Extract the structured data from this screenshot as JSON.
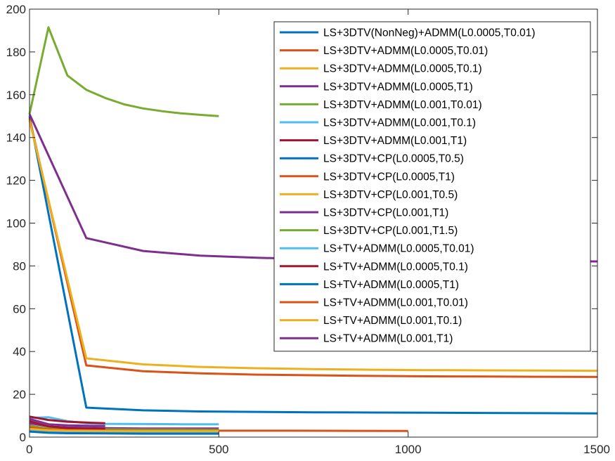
{
  "chart_data": {
    "type": "line",
    "title": "",
    "xlabel": "",
    "ylabel": "",
    "xlim": [
      0,
      1500
    ],
    "ylim": [
      0,
      200
    ],
    "xticks": [
      0,
      500,
      1000,
      1500
    ],
    "yticks": [
      0,
      20,
      40,
      60,
      80,
      100,
      120,
      140,
      160,
      180,
      200
    ],
    "grid": false,
    "legend_position": "top-right",
    "series": [
      {
        "name": "LS+3DTV(NonNeg)+ADMM(L0.0005,T0.01)",
        "color": "#0072BD",
        "x": [
          0,
          150,
          300,
          450,
          600,
          750,
          900,
          1050,
          1200,
          1350,
          1500
        ],
        "y": [
          150,
          13.8,
          12.5,
          12,
          11.8,
          11.6,
          11.5,
          11.4,
          11.3,
          11.2,
          11.1
        ]
      },
      {
        "name": "LS+3DTV+ADMM(L0.0005,T0.01)",
        "color": "#D95319",
        "x": [
          0,
          150,
          300,
          450,
          600,
          750,
          900,
          1050,
          1200,
          1350,
          1500
        ],
        "y": [
          149,
          33.5,
          30.8,
          29.8,
          29.2,
          28.9,
          28.6,
          28.4,
          28.3,
          28.2,
          28.1
        ]
      },
      {
        "name": "LS+3DTV+ADMM(L0.0005,T0.1)",
        "color": "#EDB120",
        "x": [
          0,
          150,
          300,
          450,
          600,
          750,
          900,
          1050,
          1200,
          1350,
          1500
        ],
        "y": [
          148,
          36.8,
          34,
          32.8,
          32.2,
          31.8,
          31.5,
          31.3,
          31.2,
          31.1,
          31
        ]
      },
      {
        "name": "LS+3DTV+ADMM(L0.0005,T1)",
        "color": "#7E2F8E",
        "x": [
          0,
          150,
          300,
          450,
          600,
          750,
          900,
          1050,
          1200,
          1350,
          1500
        ],
        "y": [
          151,
          93,
          87,
          84.8,
          83.8,
          83.2,
          82.8,
          82.5,
          82.3,
          82.2,
          82.1
        ]
      },
      {
        "name": "LS+3DTV+ADMM(L0.001,T0.01)",
        "color": "#77AC30",
        "x": [
          0,
          50,
          100,
          150,
          200,
          250,
          300,
          350,
          400,
          450,
          500
        ],
        "y": [
          151,
          191.5,
          169,
          162.3,
          158.5,
          155.5,
          153.6,
          152.3,
          151.3,
          150.6,
          150
        ]
      },
      {
        "name": "LS+3DTV+ADMM(L0.001,T0.1)",
        "color": "#4DBEEE",
        "x": [
          0,
          50,
          100,
          150,
          200,
          300,
          400,
          500
        ],
        "y": [
          9,
          9.3,
          7.5,
          6.5,
          6.2,
          6.1,
          6,
          6
        ]
      },
      {
        "name": "LS+3DTV+ADMM(L0.001,T1)",
        "color": "#A2142F",
        "x": [
          0,
          50,
          100,
          150,
          200
        ],
        "y": [
          9.6,
          8,
          7.2,
          6.8,
          6.5
        ]
      },
      {
        "name": "LS+3DTV+CP(L0.0005,T0.5)",
        "color": "#0072BD",
        "x": [
          0,
          50,
          100,
          200,
          300,
          400,
          500
        ],
        "y": [
          3.5,
          2.6,
          2.3,
          2.1,
          2,
          2,
          1.9
        ]
      },
      {
        "name": "LS+3DTV+CP(L0.0005,T1)",
        "color": "#D95319",
        "x": [
          0,
          50,
          100,
          200,
          300,
          500,
          700,
          1000
        ],
        "y": [
          5.5,
          3.8,
          3.3,
          3.1,
          3,
          3,
          3,
          2.9
        ]
      },
      {
        "name": "LS+3DTV+CP(L0.001,T0.5)",
        "color": "#EDB120",
        "x": [
          0,
          50,
          100,
          200,
          300,
          400,
          500
        ],
        "y": [
          4.2,
          3.4,
          3.1,
          2.9,
          2.8,
          2.8,
          2.8
        ]
      },
      {
        "name": "LS+3DTV+CP(L0.001,T1)",
        "color": "#7E2F8E",
        "x": [
          0,
          50,
          100,
          200,
          300,
          400,
          500
        ],
        "y": [
          6.5,
          5,
          4.5,
          4.2,
          4,
          4,
          4
        ]
      },
      {
        "name": "LS+3DTV+CP(L0.001,T1.5)",
        "color": "#77AC30",
        "x": [
          0,
          50,
          100,
          200,
          300,
          400,
          500
        ],
        "y": [
          5.2,
          4,
          3.8,
          3.6,
          3.5,
          3.5,
          3.4
        ]
      },
      {
        "name": "LS+TV+ADMM(L0.0005,T0.01)",
        "color": "#4DBEEE",
        "x": [
          0,
          50,
          100,
          200,
          300,
          400,
          500
        ],
        "y": [
          3,
          2.4,
          2.2,
          2.1,
          2,
          2,
          2
        ]
      },
      {
        "name": "LS+TV+ADMM(L0.0005,T0.1)",
        "color": "#A2142F",
        "x": [
          0,
          50,
          100,
          150,
          200
        ],
        "y": [
          7.5,
          5,
          4.2,
          3.9,
          3.8
        ]
      },
      {
        "name": "LS+TV+ADMM(L0.0005,T1)",
        "color": "#0072BD",
        "x": [
          0,
          50,
          100,
          200,
          300,
          400,
          500
        ],
        "y": [
          2.6,
          2,
          1.8,
          1.7,
          1.6,
          1.6,
          1.6
        ]
      },
      {
        "name": "LS+TV+ADMM(L0.001,T0.01)",
        "color": "#D95319",
        "x": [
          0,
          50,
          100,
          200,
          300,
          500
        ],
        "y": [
          4.5,
          3.6,
          3.3,
          3.1,
          3,
          3
        ]
      },
      {
        "name": "LS+TV+ADMM(L0.001,T0.1)",
        "color": "#EDB120",
        "x": [
          0,
          50,
          100,
          200,
          300,
          500
        ],
        "y": [
          3.8,
          3.2,
          3,
          2.9,
          2.8,
          2.8
        ]
      },
      {
        "name": "LS+TV+ADMM(L0.001,T1)",
        "color": "#7E2F8E",
        "x": [
          0,
          50,
          100,
          200
        ],
        "y": [
          8.5,
          6,
          5.5,
          5.2
        ]
      }
    ]
  }
}
